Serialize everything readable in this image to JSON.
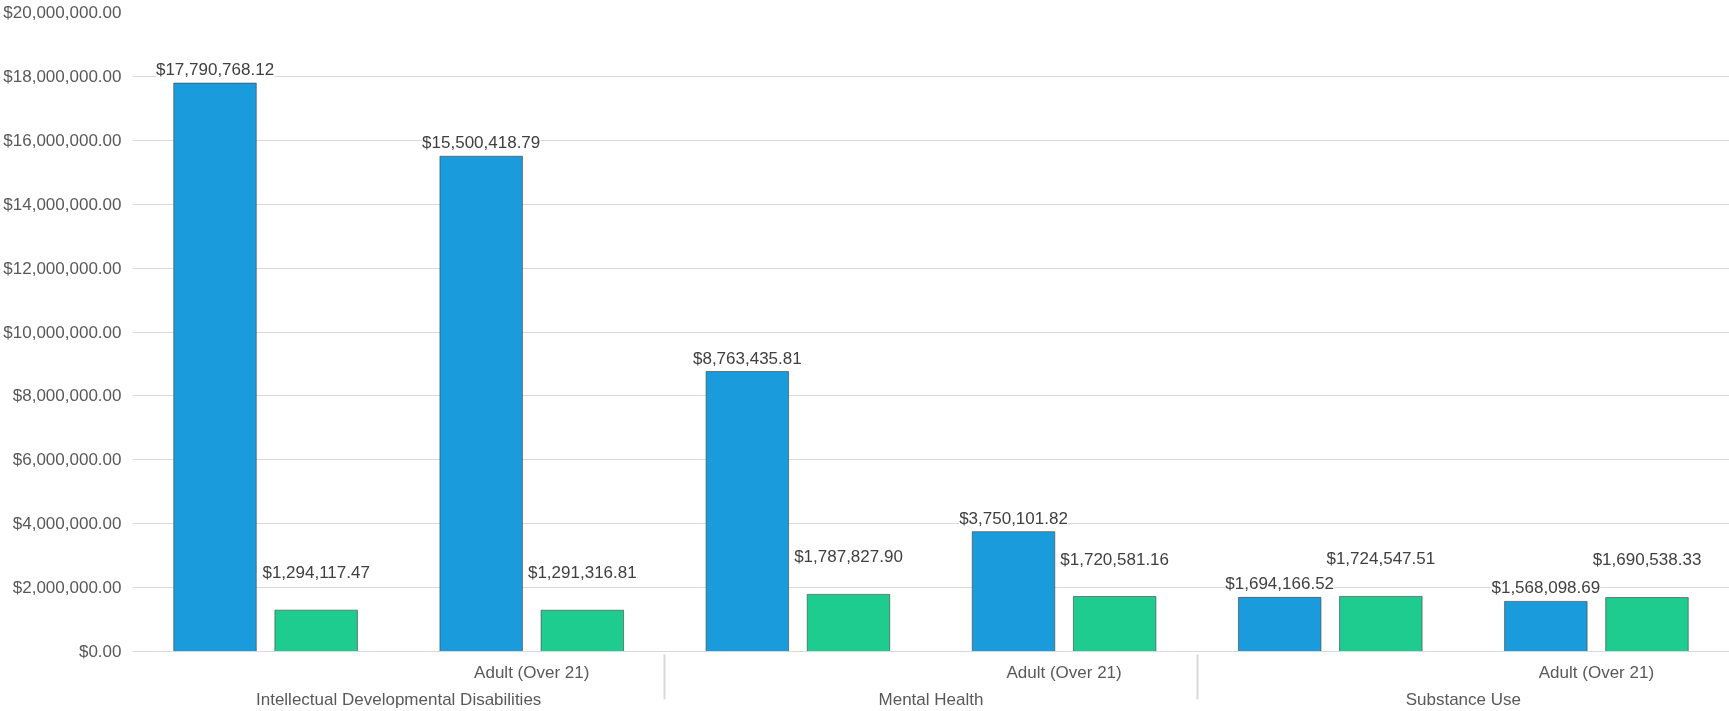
{
  "chart_data": {
    "type": "bar",
    "categories": [
      null,
      "Adult (Over 21)",
      null,
      "Adult (Over 21)",
      null,
      "Adult (Over 21)"
    ],
    "annotations": [
      "Intellectual Developmental Disabilities",
      "Mental Health",
      "Substance Use"
    ],
    "series": [
      {
        "color": "#1a9bdc",
        "values": [
          17790768.12,
          15500418.79,
          8763435.81,
          3750101.82,
          1694166.52,
          1568098.69
        ],
        "value_labels": [
          "$17,790,768.12",
          "$15,500,418.79",
          "$8,763,435.81",
          "$3,750,101.82",
          "$1,694,166.52",
          "$1,568,098.69"
        ]
      },
      {
        "color": "#1fcc8f",
        "values": [
          1294117.47,
          1291316.81,
          1787827.9,
          1720581.16,
          1724547.51,
          1690538.33
        ],
        "value_labels": [
          "$1,294,117.47",
          "$1,291,316.81",
          "$1,787,827.90",
          "$1,720,581.16",
          "$1,724,547.51",
          "$1,690,538.33"
        ]
      }
    ],
    "ylim": [
      0,
      20000000
    ],
    "yticks": [
      {
        "value": 0,
        "label": "$0.00"
      },
      {
        "value": 2000000,
        "label": "$2,000,000.00"
      },
      {
        "value": 4000000,
        "label": "$4,000,000.00"
      },
      {
        "value": 6000000,
        "label": "$6,000,000.00"
      },
      {
        "value": 8000000,
        "label": "$8,000,000.00"
      },
      {
        "value": 10000000,
        "label": "$10,000,000.00"
      },
      {
        "value": 12000000,
        "label": "$12,000,000.00"
      },
      {
        "value": 14000000,
        "label": "$14,000,000.00"
      },
      {
        "value": 16000000,
        "label": "$16,000,000.00"
      },
      {
        "value": 18000000,
        "label": "$18,000,000.00"
      },
      {
        "value": 20000000,
        "label": "$20,000,000.00"
      }
    ],
    "grid": "y"
  }
}
